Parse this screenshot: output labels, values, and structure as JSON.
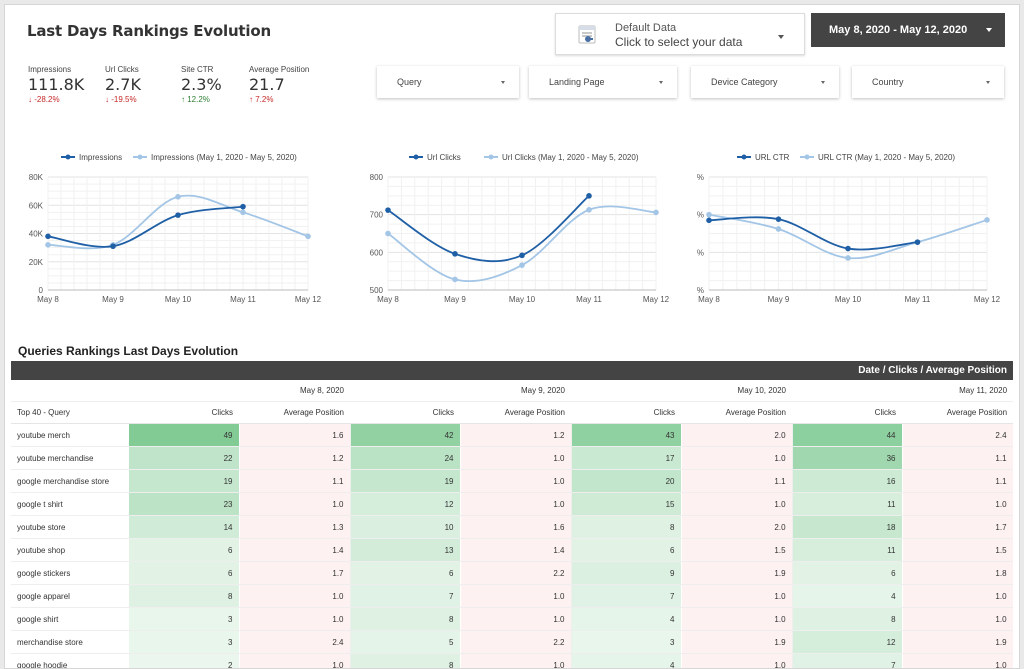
{
  "header": {
    "title": "Last Days Rankings Evolution",
    "data_source": {
      "line1": "Default Data",
      "line2": "Click to select your data"
    },
    "date_range": "May 8, 2020 - May 12, 2020"
  },
  "kpis": [
    {
      "label": "Impressions",
      "value": "111.8K",
      "change": "↓ -28.2%",
      "direction": "down"
    },
    {
      "label": "Url Clicks",
      "value": "2.7K",
      "change": "↓ -19.5%",
      "direction": "down"
    },
    {
      "label": "Site CTR",
      "value": "2.3%",
      "change": "↑ 12.2%",
      "direction": "up"
    },
    {
      "label": "Average Position",
      "value": "21.7",
      "change": "↑ 7.2%",
      "direction": "up"
    }
  ],
  "filters": [
    "Query",
    "Landing Page",
    "Device Category",
    "Country"
  ],
  "colors": {
    "current": "#1f5fa6",
    "previous": "#a3c5e6",
    "header_bar": "#444444",
    "clicks_green": "#63be7b",
    "position_red": "#fdf1f1"
  },
  "chart_data": [
    {
      "type": "line",
      "x": [
        "May 8",
        "May 9",
        "May 10",
        "May 11",
        "May 12"
      ],
      "y_ticks": [
        "0",
        "20K",
        "40K",
        "60K",
        "80K"
      ],
      "ylim": [
        0,
        80000
      ],
      "legend_position": "top",
      "series": [
        {
          "name": "Impressions",
          "values": [
            38000,
            31000,
            53000,
            59000,
            null
          ]
        },
        {
          "name": "Impressions (May 1, 2020 - May 5, 2020)",
          "values": [
            32000,
            32000,
            66000,
            55000,
            38000
          ]
        }
      ]
    },
    {
      "type": "line",
      "x": [
        "May 8",
        "May 9",
        "May 10",
        "May 11",
        "May 12"
      ],
      "y_ticks": [
        "500",
        "600",
        "700",
        "800"
      ],
      "ylim": [
        500,
        800
      ],
      "legend_position": "top",
      "series": [
        {
          "name": "Url Clicks",
          "values": [
            712,
            596,
            592,
            750,
            null
          ]
        },
        {
          "name": "Url Clicks (May 1, 2020 - May 5, 2020)",
          "values": [
            650,
            528,
            566,
            713,
            706
          ]
        }
      ]
    },
    {
      "type": "line",
      "x": [
        "May 8",
        "May 9",
        "May 10",
        "May 11",
        "May 12"
      ],
      "y_ticks": [
        "0%",
        "1%",
        "2%",
        "3%"
      ],
      "ylim": [
        0,
        3
      ],
      "legend_position": "top",
      "series": [
        {
          "name": "URL CTR",
          "values": [
            1.85,
            1.88,
            1.1,
            1.27,
            null
          ]
        },
        {
          "name": "URL CTR (May 1, 2020 - May 5, 2020)",
          "values": [
            2.0,
            1.62,
            0.85,
            1.27,
            1.86
          ]
        }
      ]
    }
  ],
  "table": {
    "section_title": "Queries Rankings Last Days Evolution",
    "header_bar": "Date / Clicks / Average Position",
    "query_header": "Top 40 - Query",
    "dates": [
      "May 8, 2020",
      "May 9, 2020",
      "May 10, 2020",
      "May 11, 2020"
    ],
    "metric_headers": [
      "Clicks",
      "Average Position"
    ],
    "rows": [
      {
        "query": "youtube merch",
        "cells": [
          [
            "49",
            "1.6"
          ],
          [
            "42",
            "1.2"
          ],
          [
            "43",
            "2.0"
          ],
          [
            "44",
            "2.4"
          ]
        ]
      },
      {
        "query": "youtube merchandise",
        "cells": [
          [
            "22",
            "1.2"
          ],
          [
            "24",
            "1.0"
          ],
          [
            "17",
            "1.0"
          ],
          [
            "36",
            "1.1"
          ]
        ]
      },
      {
        "query": "google merchandise store",
        "cells": [
          [
            "19",
            "1.1"
          ],
          [
            "19",
            "1.0"
          ],
          [
            "20",
            "1.1"
          ],
          [
            "16",
            "1.1"
          ]
        ]
      },
      {
        "query": "google t shirt",
        "cells": [
          [
            "23",
            "1.0"
          ],
          [
            "12",
            "1.0"
          ],
          [
            "15",
            "1.0"
          ],
          [
            "11",
            "1.0"
          ]
        ]
      },
      {
        "query": "youtube store",
        "cells": [
          [
            "14",
            "1.3"
          ],
          [
            "10",
            "1.6"
          ],
          [
            "8",
            "2.0"
          ],
          [
            "18",
            "1.7"
          ]
        ]
      },
      {
        "query": "youtube shop",
        "cells": [
          [
            "6",
            "1.4"
          ],
          [
            "13",
            "1.4"
          ],
          [
            "6",
            "1.5"
          ],
          [
            "11",
            "1.5"
          ]
        ]
      },
      {
        "query": "google stickers",
        "cells": [
          [
            "6",
            "1.7"
          ],
          [
            "6",
            "2.2"
          ],
          [
            "9",
            "1.9"
          ],
          [
            "6",
            "1.8"
          ]
        ]
      },
      {
        "query": "google apparel",
        "cells": [
          [
            "8",
            "1.0"
          ],
          [
            "7",
            "1.0"
          ],
          [
            "7",
            "1.0"
          ],
          [
            "4",
            "1.0"
          ]
        ]
      },
      {
        "query": "google shirt",
        "cells": [
          [
            "3",
            "1.0"
          ],
          [
            "8",
            "1.0"
          ],
          [
            "4",
            "1.0"
          ],
          [
            "8",
            "1.0"
          ]
        ]
      },
      {
        "query": "merchandise store",
        "cells": [
          [
            "3",
            "2.4"
          ],
          [
            "5",
            "2.2"
          ],
          [
            "3",
            "1.9"
          ],
          [
            "12",
            "1.9"
          ]
        ]
      },
      {
        "query": "google hoodie",
        "cells": [
          [
            "2",
            "1.0"
          ],
          [
            "8",
            "1.0"
          ],
          [
            "4",
            "1.0"
          ],
          [
            "7",
            "1.0"
          ]
        ]
      }
    ]
  }
}
